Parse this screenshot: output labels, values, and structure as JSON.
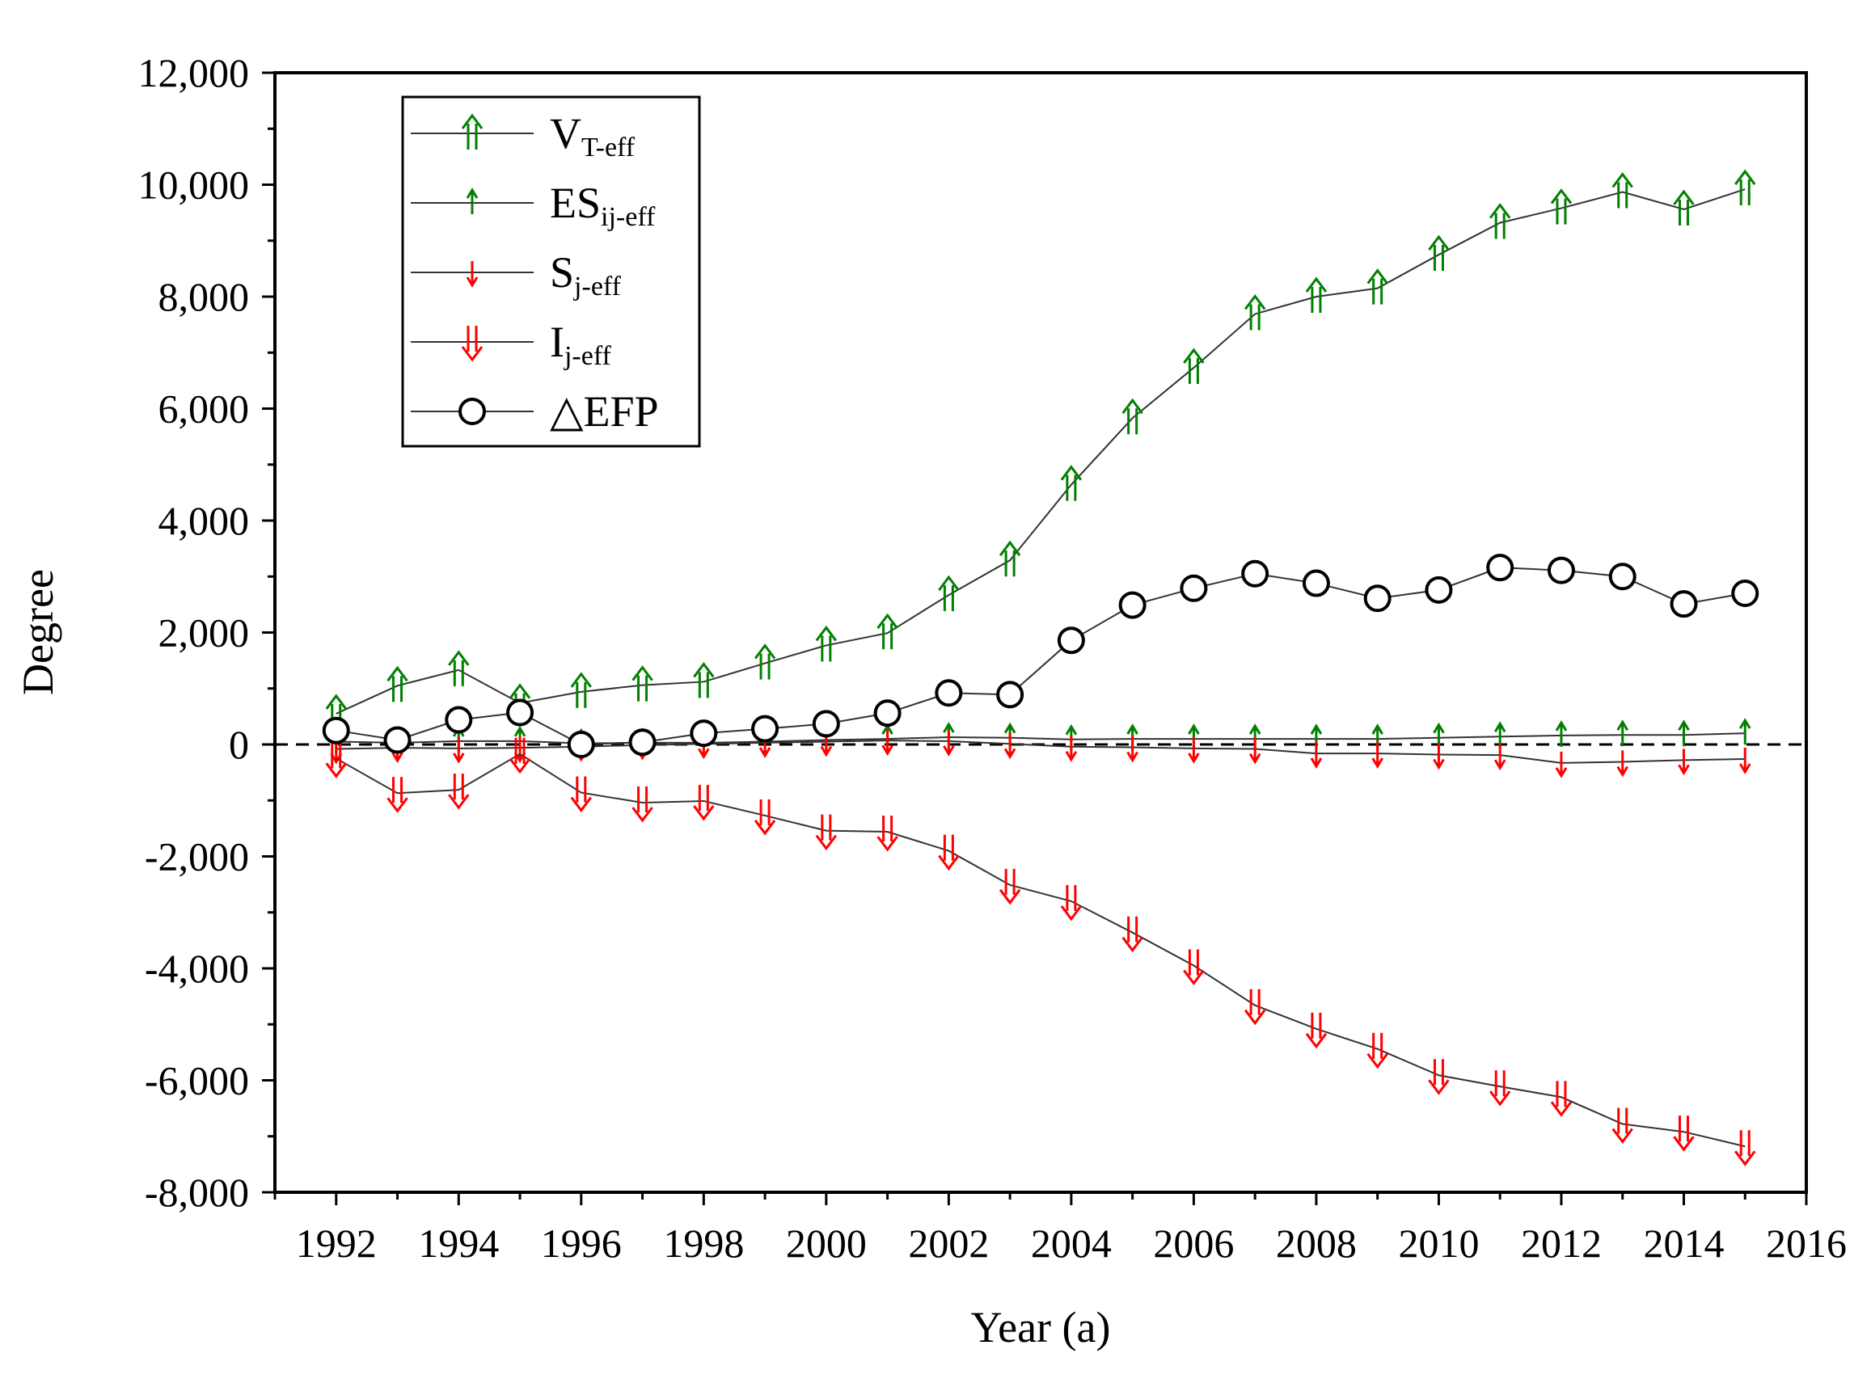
{
  "chart_data": {
    "type": "line",
    "title": "",
    "xlabel": "Year (a)",
    "ylabel": "Degree",
    "xlim": [
      1991,
      2016
    ],
    "ylim": [
      -8000,
      12000
    ],
    "x_ticks": [
      1992,
      1994,
      1996,
      1998,
      2000,
      2002,
      2004,
      2006,
      2008,
      2010,
      2012,
      2014,
      2016
    ],
    "x_tick_labels": [
      "1992",
      "1994",
      "1996",
      "1998",
      "2000",
      "2002",
      "2004",
      "2006",
      "2008",
      "2010",
      "2012",
      "2014",
      "2016"
    ],
    "y_ticks": [
      -8000,
      -6000,
      -4000,
      -2000,
      0,
      2000,
      4000,
      6000,
      8000,
      10000,
      12000
    ],
    "y_tick_labels": [
      "-8,000",
      "-6,000",
      "-4,000",
      "-2,000",
      "0",
      "2,000",
      "4,000",
      "6,000",
      "8,000",
      "10,000",
      "12,000"
    ],
    "reference_line": {
      "y": 0,
      "style": "dashed"
    },
    "legend_position": "top-left",
    "x": [
      1992,
      1993,
      1994,
      1995,
      1996,
      1997,
      1998,
      1999,
      2000,
      2001,
      2002,
      2003,
      2004,
      2005,
      2006,
      2007,
      2008,
      2009,
      2010,
      2011,
      2012,
      2013,
      2014,
      2015
    ],
    "series": [
      {
        "name": "V_T-eff",
        "label_main": "V",
        "label_sub": "T-eff",
        "marker": "double-up-arrow",
        "color": "#008000",
        "values": [
          550,
          1050,
          1330,
          740,
          940,
          1060,
          1120,
          1450,
          1770,
          1990,
          2670,
          3290,
          4640,
          5830,
          6730,
          7690,
          8000,
          8150,
          8750,
          9320,
          9580,
          9870,
          9560,
          9920
        ]
      },
      {
        "name": "ES_ij-eff",
        "label_main": "ES",
        "label_sub": "ij-eff",
        "marker": "up-arrow",
        "color": "#008000",
        "values": [
          50,
          30,
          60,
          60,
          20,
          30,
          30,
          50,
          80,
          100,
          130,
          120,
          90,
          100,
          100,
          100,
          100,
          100,
          120,
          140,
          160,
          170,
          170,
          200
        ]
      },
      {
        "name": "S_j-eff",
        "label_main": "S",
        "label_sub": "j-eff",
        "marker": "down-arrow",
        "color": "#ff0000",
        "values": [
          -80,
          -60,
          -70,
          -60,
          -40,
          -10,
          10,
          30,
          50,
          70,
          60,
          10,
          -40,
          -50,
          -70,
          -80,
          -160,
          -160,
          -180,
          -190,
          -330,
          -310,
          -280,
          -260
        ]
      },
      {
        "name": "I_j-eff",
        "label_main": "I",
        "label_sub": "j-eff",
        "marker": "double-down-arrow",
        "color": "#ff0000",
        "values": [
          -250,
          -870,
          -810,
          -170,
          -860,
          -1040,
          -1010,
          -1270,
          -1540,
          -1560,
          -1900,
          -2510,
          -2800,
          -3360,
          -3950,
          -4660,
          -5080,
          -5440,
          -5910,
          -6110,
          -6300,
          -6780,
          -6920,
          -7180
        ]
      },
      {
        "name": "ΔEFP",
        "label_main": "△EFP",
        "label_sub": "",
        "marker": "open-circle",
        "color": "#000000",
        "values": [
          250,
          80,
          440,
          570,
          0,
          40,
          200,
          280,
          370,
          560,
          920,
          890,
          1860,
          2490,
          2790,
          3050,
          2880,
          2610,
          2760,
          3160,
          3110,
          3000,
          2510,
          2700
        ]
      }
    ]
  }
}
